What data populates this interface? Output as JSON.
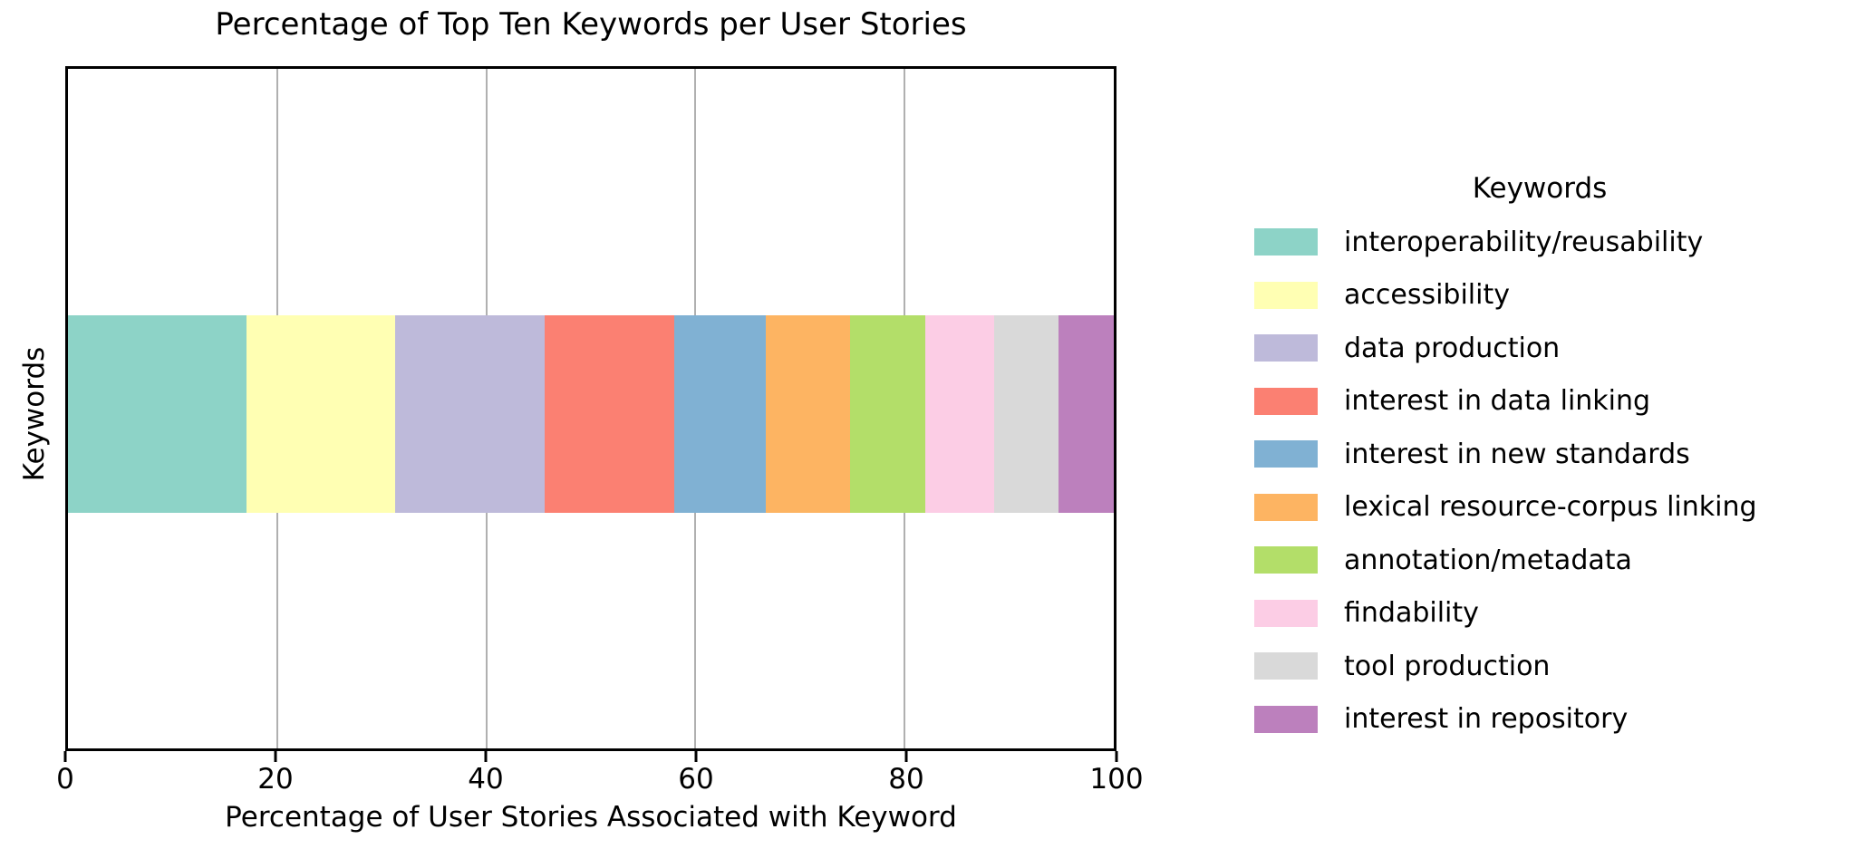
{
  "chart_data": {
    "type": "bar",
    "orientation": "horizontal",
    "stacked": true,
    "title": "Percentage of Top Ten Keywords per User Stories",
    "xlabel": "Percentage of User Stories Associated with Keyword",
    "ylabel": "Keywords",
    "xlim": [
      0,
      100
    ],
    "xticks": [
      0,
      20,
      40,
      60,
      80,
      100
    ],
    "grid": true,
    "grid_color": "#b0b0b0",
    "legend_title": "Keywords",
    "legend_position": "right of plot",
    "series": [
      {
        "name": "interoperability/reusability",
        "value": 17.1,
        "color": "#8dd3c7"
      },
      {
        "name": "accessibility",
        "value": 14.2,
        "color": "#ffffb3"
      },
      {
        "name": "data production",
        "value": 14.3,
        "color": "#bebada"
      },
      {
        "name": "interest in data linking",
        "value": 12.4,
        "color": "#fb8072"
      },
      {
        "name": "interest in new standards",
        "value": 8.7,
        "color": "#80b1d3"
      },
      {
        "name": "lexical resource-corpus linking",
        "value": 8.1,
        "color": "#fdb462"
      },
      {
        "name": "annotation/metadata",
        "value": 7.2,
        "color": "#b3de69"
      },
      {
        "name": "findability",
        "value": 6.6,
        "color": "#fccde5"
      },
      {
        "name": "tool production",
        "value": 6.1,
        "color": "#d9d9d9"
      },
      {
        "name": "interest in repository",
        "value": 5.3,
        "color": "#bc80bd"
      }
    ]
  }
}
